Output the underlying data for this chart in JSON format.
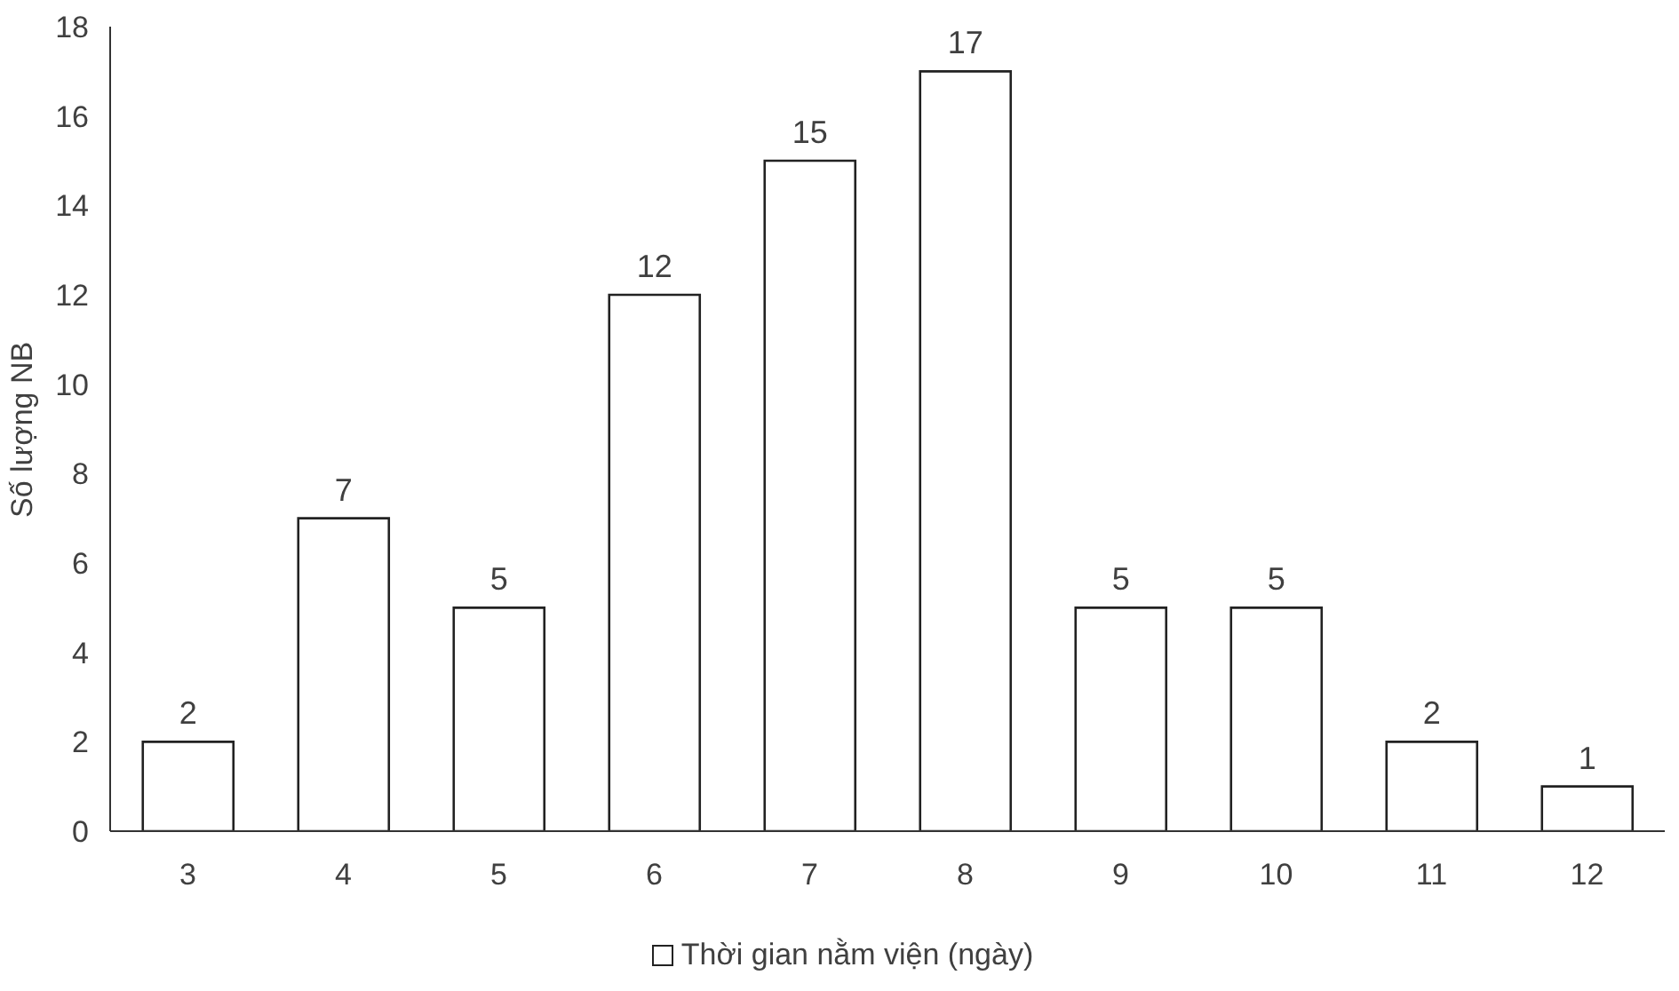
{
  "chart_data": {
    "type": "bar",
    "ylabel": "Số lượng NB",
    "categories": [
      "3",
      "4",
      "5",
      "6",
      "7",
      "8",
      "9",
      "10",
      "11",
      "12"
    ],
    "series": [
      {
        "name": "Thời gian nằm viện (ngày)",
        "color": "#ffffff",
        "values": [
          2,
          7,
          5,
          12,
          15,
          17,
          5,
          5,
          2,
          1
        ]
      }
    ],
    "ylim": [
      0,
      18
    ],
    "yticks": [
      0,
      2,
      4,
      6,
      8,
      10,
      12,
      14,
      16,
      18
    ],
    "grid": false,
    "legend": "bottom",
    "data_labels": true
  }
}
